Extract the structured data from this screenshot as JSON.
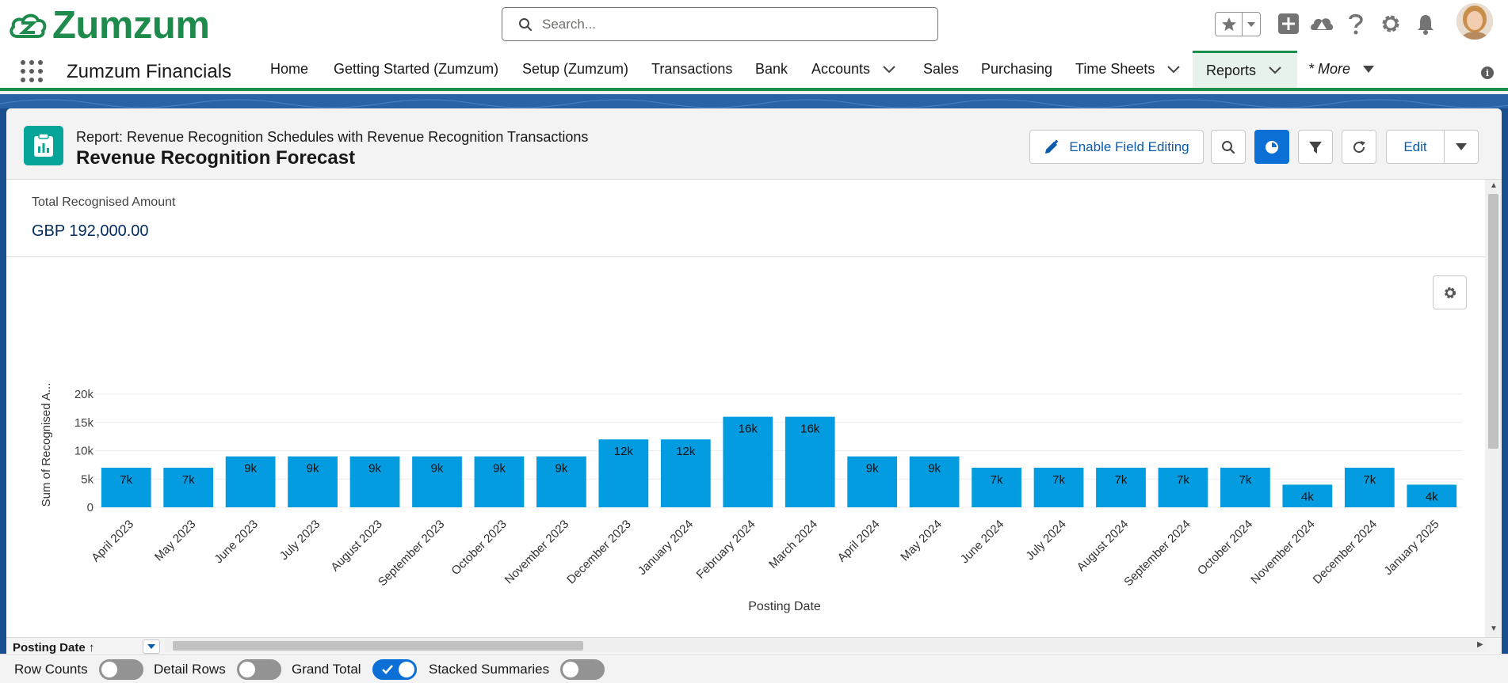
{
  "header": {
    "logo_text": "Zumzum",
    "search_placeholder": "Search..."
  },
  "nav": {
    "app_name": "Zumzum Financials",
    "items": [
      {
        "label": "Home"
      },
      {
        "label": "Getting Started (Zumzum)"
      },
      {
        "label": "Setup (Zumzum)"
      },
      {
        "label": "Transactions"
      },
      {
        "label": "Bank"
      },
      {
        "label": "Accounts"
      },
      {
        "label": "Sales"
      },
      {
        "label": "Purchasing"
      },
      {
        "label": "Time Sheets"
      },
      {
        "label": "Reports"
      },
      {
        "label": "* More"
      }
    ],
    "active": "Reports"
  },
  "report": {
    "subtitle": "Report: Revenue Recognition Schedules with Revenue Recognition Transactions",
    "title": "Revenue Recognition Forecast",
    "enable_field_editing_label": "Enable Field Editing",
    "edit_label": "Edit",
    "summary_label": "Total Recognised Amount",
    "summary_value": "GBP 192,000.00",
    "column_header": "Posting Date"
  },
  "footer": {
    "row_counts_label": "Row Counts",
    "row_counts_on": false,
    "detail_rows_label": "Detail Rows",
    "detail_rows_on": false,
    "grand_total_label": "Grand Total",
    "grand_total_on": true,
    "stacked_summaries_label": "Stacked Summaries",
    "stacked_summaries_on": false
  },
  "colors": {
    "brand_green": "#1e8a4c",
    "bar_color": "#049ce0",
    "brand_blue": "#0b6fd6",
    "report_icon": "#06a59a"
  },
  "chart_data": {
    "type": "bar",
    "xlabel": "Posting Date",
    "ylabel": "Sum of Recognised A...",
    "ylim": [
      0,
      20000
    ],
    "yticks": [
      "0",
      "5k",
      "10k",
      "15k",
      "20k"
    ],
    "grid": true,
    "categories": [
      "April 2023",
      "May 2023",
      "June 2023",
      "July 2023",
      "August 2023",
      "September 2023",
      "October 2023",
      "November 2023",
      "December 2023",
      "January 2024",
      "February 2024",
      "March 2024",
      "April 2024",
      "May 2024",
      "June 2024",
      "July 2024",
      "August 2024",
      "September 2024",
      "October 2024",
      "November 2024",
      "December 2024",
      "January 2025"
    ],
    "values": [
      7000,
      7000,
      9000,
      9000,
      9000,
      9000,
      9000,
      9000,
      12000,
      12000,
      16000,
      16000,
      9000,
      9000,
      7000,
      7000,
      7000,
      7000,
      7000,
      4000,
      7000,
      4000
    ],
    "data_labels": [
      "7k",
      "7k",
      "9k",
      "9k",
      "9k",
      "9k",
      "9k",
      "9k",
      "12k",
      "12k",
      "16k",
      "16k",
      "9k",
      "9k",
      "7k",
      "7k",
      "7k",
      "7k",
      "7k",
      "4k",
      "7k",
      "4k"
    ]
  }
}
